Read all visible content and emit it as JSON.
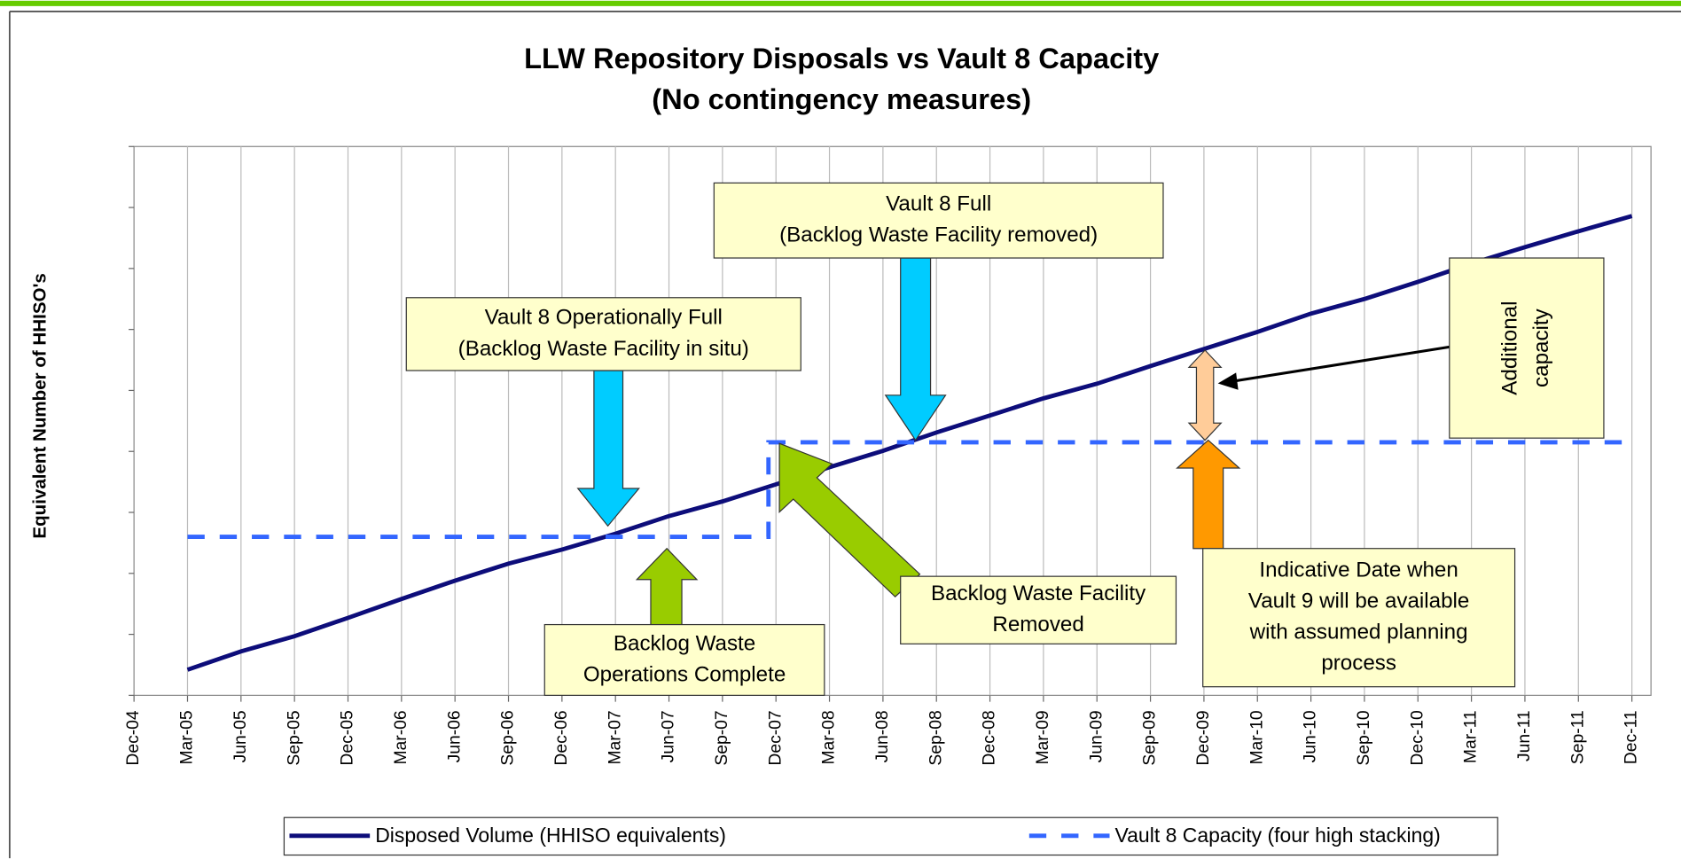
{
  "chart_data": {
    "type": "line",
    "title": [
      "LLW Repository Disposals vs Vault 8 Capacity",
      "(No contingency measures)"
    ],
    "y_label": "Equivalent Number of HHISO's",
    "categories": [
      "Dec-04",
      "Mar-05",
      "Jun-05",
      "Sep-05",
      "Dec-05",
      "Mar-06",
      "Jun-06",
      "Sep-06",
      "Dec-06",
      "Mar-07",
      "Jun-07",
      "Sep-07",
      "Dec-07",
      "Mar-08",
      "Jun-08",
      "Sep-08",
      "Dec-08",
      "Mar-09",
      "Jun-09",
      "Sep-09",
      "Dec-09",
      "Mar-10",
      "Jun-10",
      "Sep-10",
      "Dec-10",
      "Mar-11",
      "Jun-11",
      "Sep-11",
      "Dec-11"
    ],
    "series": [
      {
        "name": "Disposed Volume (HHISO equivalents)",
        "color": "#0d0d7a",
        "dash": false,
        "values": [
          null,
          0.42,
          0.72,
          0.97,
          1.27,
          1.58,
          1.88,
          2.16,
          2.39,
          2.65,
          2.94,
          3.18,
          3.46,
          3.74,
          4.01,
          4.31,
          4.59,
          4.87,
          5.11,
          5.4,
          5.68,
          5.96,
          6.26,
          6.5,
          6.78,
          7.08,
          7.35,
          7.61,
          7.86
        ]
      },
      {
        "name": "Vault 8 Capacity (four high stacking)",
        "color": "#3366ff",
        "dash": true,
        "step": true,
        "values": [
          null,
          2.6,
          2.6,
          2.6,
          2.6,
          2.6,
          2.6,
          2.6,
          2.6,
          2.6,
          2.6,
          2.6,
          4.15,
          4.15,
          4.15,
          4.15,
          4.15,
          4.15,
          4.15,
          4.15,
          4.15,
          4.15,
          4.15,
          4.15,
          4.15,
          4.15,
          4.15,
          4.15,
          4.15
        ]
      }
    ],
    "ylim": [
      0,
      9
    ],
    "yticks": [
      0,
      1,
      2,
      3,
      4,
      5,
      6,
      7,
      8,
      9
    ],
    "grid": true,
    "legend": "bottom",
    "annotations": [
      [
        "Vault 8 Full",
        "(Backlog Waste Facility removed)"
      ],
      [
        "Vault 8 Operationally Full",
        "(Backlog Waste Facility in situ)"
      ],
      [
        "Additional",
        "capacity"
      ],
      [
        "Backlog Waste",
        "Operations Complete"
      ],
      [
        "Backlog Waste Facility",
        "Removed"
      ],
      [
        "Indicative Date when",
        "Vault 9 will be available",
        "with assumed planning",
        "process"
      ]
    ]
  }
}
